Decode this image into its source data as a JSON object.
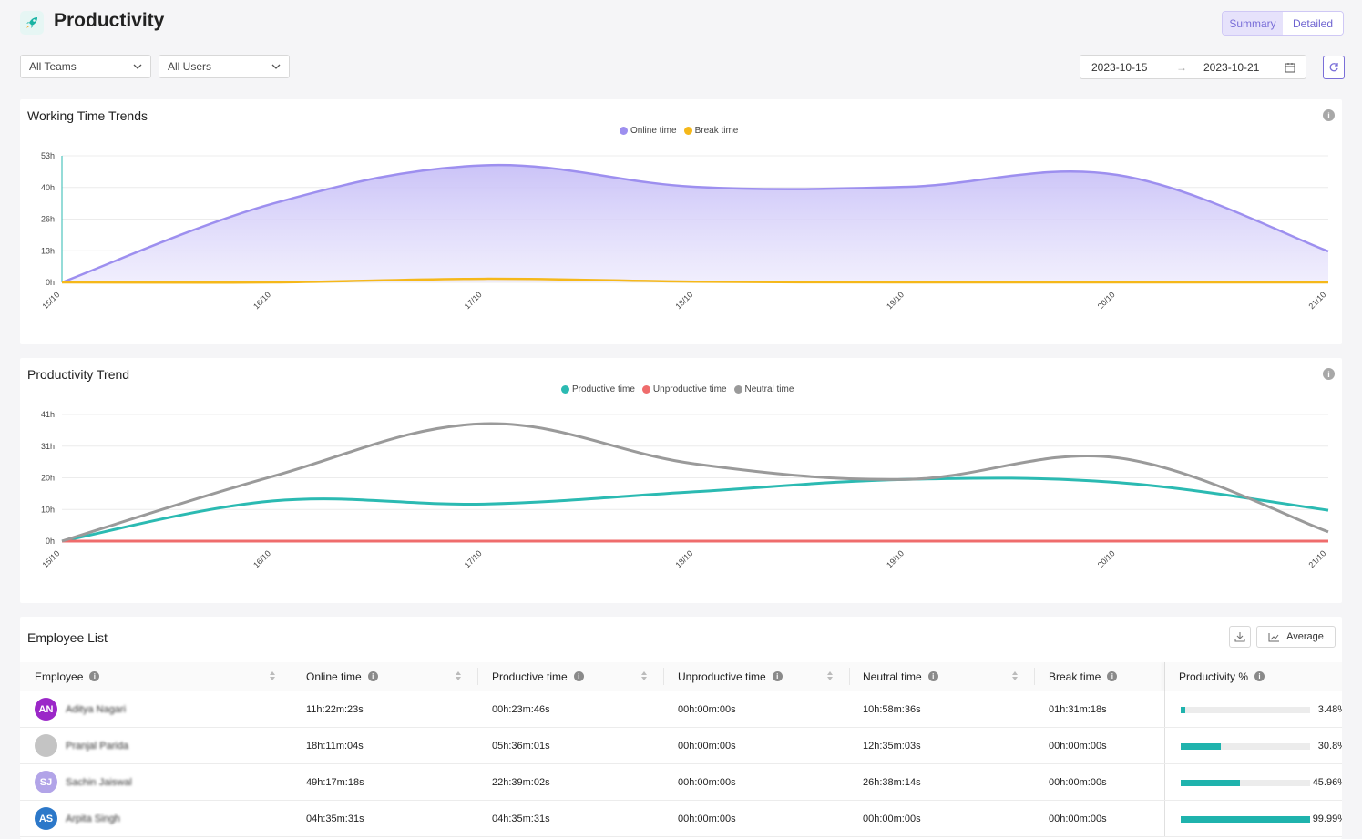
{
  "header": {
    "title": "Productivity",
    "icon": "rocket-icon"
  },
  "view_toggle": {
    "summary": "Summary",
    "detailed": "Detailed",
    "selected": "Summary"
  },
  "filters": {
    "teams": "All Teams",
    "users": "All Users"
  },
  "date_range": {
    "start": "2023-10-15",
    "separator": "→",
    "end": "2023-10-21"
  },
  "working_time_chart": {
    "title": "Working Time Trends",
    "legend": [
      "Online time",
      "Break time"
    ]
  },
  "productivity_chart": {
    "title": "Productivity Trend",
    "legend": [
      "Productive time",
      "Unproductive time",
      "Neutral time"
    ]
  },
  "chart_data": [
    {
      "type": "area",
      "title": "Working Time Trends",
      "x": [
        "15/10",
        "16/10",
        "17/10",
        "18/10",
        "19/10",
        "20/10",
        "21/10"
      ],
      "y_ticks": [
        "0h",
        "13h",
        "26h",
        "40h",
        "53h"
      ],
      "ylim": [
        0,
        53
      ],
      "series": [
        {
          "name": "Online time",
          "color": "#9d8fef",
          "values": [
            0,
            33,
            49,
            40,
            40,
            45,
            13
          ]
        },
        {
          "name": "Break time",
          "color": "#f5b81a",
          "values": [
            0,
            0,
            1.5,
            0.3,
            0,
            0,
            0
          ]
        }
      ],
      "grid": true,
      "legend_position": "top-center"
    },
    {
      "type": "line",
      "title": "Productivity Trend",
      "x": [
        "15/10",
        "16/10",
        "17/10",
        "18/10",
        "19/10",
        "20/10",
        "21/10"
      ],
      "y_ticks": [
        "0h",
        "10h",
        "20h",
        "31h",
        "41h"
      ],
      "ylim": [
        0,
        41
      ],
      "series": [
        {
          "name": "Productive time",
          "color": "#2bbab2",
          "values": [
            0,
            13,
            12,
            16,
            20,
            19,
            10
          ]
        },
        {
          "name": "Unproductive time",
          "color": "#ef6c6c",
          "values": [
            0,
            0,
            0,
            0,
            0,
            0,
            0
          ]
        },
        {
          "name": "Neutral time",
          "color": "#9a9a9a",
          "values": [
            0,
            21,
            38,
            25,
            20,
            27,
            3
          ]
        }
      ],
      "grid": true,
      "legend_position": "top-center"
    }
  ],
  "employee_list": {
    "title": "Employee List",
    "average_label": "Average",
    "columns": [
      "Employee",
      "Online time",
      "Productive time",
      "Unproductive time",
      "Neutral time",
      "Break time",
      "Productivity %"
    ],
    "rows": [
      {
        "initials": "AN",
        "avatar_color": "#9b27c8",
        "name": "Aditya Nagari",
        "online": "11h:22m:23s",
        "productive": "00h:23m:46s",
        "unproductive": "00h:00m:00s",
        "neutral": "10h:58m:36s",
        "break": "01h:31m:18s",
        "pct_label": "3.48%",
        "pct": 3.48
      },
      {
        "initials": "",
        "avatar_color": "#c4c4c4",
        "name": "Pranjal Parida",
        "online": "18h:11m:04s",
        "productive": "05h:36m:01s",
        "unproductive": "00h:00m:00s",
        "neutral": "12h:35m:03s",
        "break": "00h:00m:00s",
        "pct_label": "30.8%",
        "pct": 30.8
      },
      {
        "initials": "SJ",
        "avatar_color": "#b2a4e8",
        "name": "Sachin Jaiswal",
        "online": "49h:17m:18s",
        "productive": "22h:39m:02s",
        "unproductive": "00h:00m:00s",
        "neutral": "26h:38m:14s",
        "break": "00h:00m:00s",
        "pct_label": "45.96%",
        "pct": 45.96
      },
      {
        "initials": "AS",
        "avatar_color": "#2c78c9",
        "name": "Arpita Singh",
        "online": "04h:35m:31s",
        "productive": "04h:35m:31s",
        "unproductive": "00h:00m:00s",
        "neutral": "00h:00m:00s",
        "break": "00h:00m:00s",
        "pct_label": "99.99%",
        "pct": 99.99
      }
    ]
  }
}
